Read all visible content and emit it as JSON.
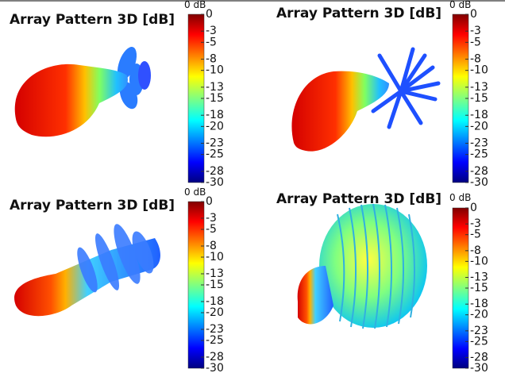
{
  "panels": [
    {
      "title": "Array Pattern 3D [dB]",
      "colorbar": {
        "label": "0 dB",
        "lim": [
          -30,
          0
        ],
        "ticks": [
          0,
          -3,
          -5,
          -8,
          -10,
          -13,
          -15,
          -18,
          -20,
          -23,
          -25,
          -28,
          -30
        ]
      }
    },
    {
      "title": "Array Pattern 3D [dB]",
      "colorbar": {
        "label": "0 dB",
        "lim": [
          -30,
          0
        ],
        "ticks": [
          0,
          -3,
          -5,
          -8,
          -10,
          -13,
          -15,
          -18,
          -20,
          -23,
          -25,
          -28,
          -30
        ]
      }
    },
    {
      "title": "Array Pattern 3D [dB]",
      "colorbar": {
        "label": "0 dB",
        "lim": [
          -30,
          0
        ],
        "ticks": [
          0,
          -3,
          -5,
          -8,
          -10,
          -13,
          -15,
          -18,
          -20,
          -23,
          -25,
          -28,
          -30
        ]
      }
    },
    {
      "title": "Array Pattern 3D [dB]",
      "colorbar": {
        "label": "0 dB",
        "lim": [
          -30,
          0
        ],
        "ticks": [
          0,
          -3,
          -5,
          -8,
          -10,
          -13,
          -15,
          -18,
          -20,
          -23,
          -25,
          -28,
          -30
        ]
      }
    }
  ]
}
